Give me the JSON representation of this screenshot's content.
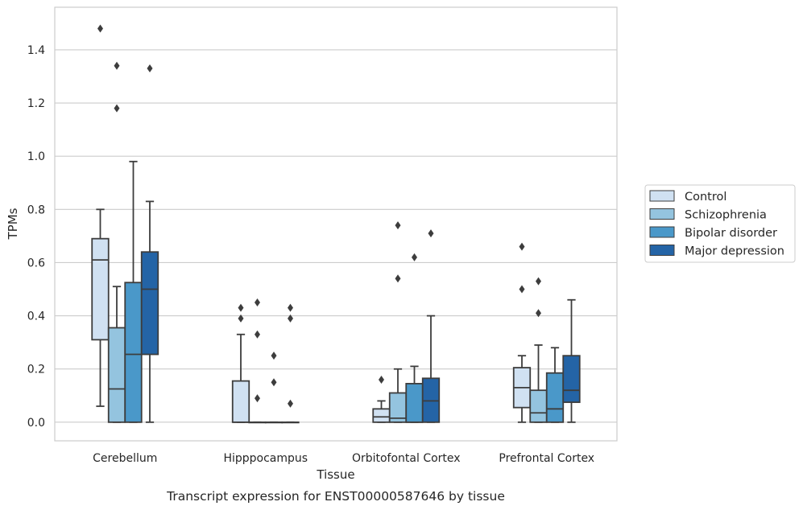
{
  "chart_data": {
    "type": "box",
    "title": "",
    "caption": "Transcript expression for ENST00000587646 by tissue",
    "xlabel": "Tissue",
    "ylabel": "TPMs",
    "ylim": [
      -0.07,
      1.56
    ],
    "yticks": [
      "0.0",
      "0.2",
      "0.4",
      "0.6",
      "0.8",
      "1.0",
      "1.2",
      "1.4"
    ],
    "yticks_values": [
      0,
      0.2,
      0.4,
      0.6,
      0.8,
      1.0,
      1.2,
      1.4
    ],
    "grid": "horizontal",
    "legend_position": "right",
    "categories": [
      "Cerebellum",
      "Hipppocampus",
      "Orbitofontal Cortex",
      "Prefrontal Cortex"
    ],
    "series": [
      {
        "name": "Control",
        "color": "#d0e1f2",
        "boxes": [
          {
            "whislo": 0.06,
            "q1": 0.31,
            "med": 0.61,
            "q3": 0.69,
            "whishi": 0.8,
            "fliers": [
              1.48
            ]
          },
          {
            "whislo": 0.0,
            "q1": 0.0,
            "med": 0.0,
            "q3": 0.155,
            "whishi": 0.33,
            "fliers": [
              0.39,
              0.43
            ]
          },
          {
            "whislo": 0.0,
            "q1": 0.0,
            "med": 0.02,
            "q3": 0.05,
            "whishi": 0.08,
            "fliers": [
              0.16
            ]
          },
          {
            "whislo": 0.0,
            "q1": 0.055,
            "med": 0.13,
            "q3": 0.205,
            "whishi": 0.25,
            "fliers": [
              0.5,
              0.66
            ]
          }
        ]
      },
      {
        "name": "Schizophrenia",
        "color": "#94c4df",
        "boxes": [
          {
            "whislo": 0.0,
            "q1": 0.0,
            "med": 0.125,
            "q3": 0.355,
            "whishi": 0.51,
            "fliers": [
              1.18,
              1.34
            ]
          },
          {
            "whislo": 0.0,
            "q1": 0.0,
            "med": 0.0,
            "q3": 0.0,
            "whishi": 0.0,
            "fliers": [
              0.09,
              0.33,
              0.45
            ]
          },
          {
            "whislo": 0.0,
            "q1": 0.0,
            "med": 0.015,
            "q3": 0.11,
            "whishi": 0.2,
            "fliers": [
              0.54,
              0.74
            ]
          },
          {
            "whislo": 0.0,
            "q1": 0.0,
            "med": 0.035,
            "q3": 0.12,
            "whishi": 0.29,
            "fliers": [
              0.41,
              0.53
            ]
          }
        ]
      },
      {
        "name": "Bipolar disorder",
        "color": "#4a98c9",
        "boxes": [
          {
            "whislo": 0.0,
            "q1": 0.0,
            "med": 0.255,
            "q3": 0.525,
            "whishi": 0.98,
            "fliers": []
          },
          {
            "whislo": 0.0,
            "q1": 0.0,
            "med": 0.0,
            "q3": 0.0,
            "whishi": 0.0,
            "fliers": [
              0.15,
              0.25
            ]
          },
          {
            "whislo": 0.0,
            "q1": 0.0,
            "med": 0.0,
            "q3": 0.145,
            "whishi": 0.21,
            "fliers": [
              0.62
            ]
          },
          {
            "whislo": 0.0,
            "q1": 0.0,
            "med": 0.05,
            "q3": 0.185,
            "whishi": 0.28,
            "fliers": []
          }
        ]
      },
      {
        "name": "Major depression",
        "color": "#2464a6",
        "boxes": [
          {
            "whislo": 0.0,
            "q1": 0.255,
            "med": 0.5,
            "q3": 0.64,
            "whishi": 0.83,
            "fliers": [
              1.33
            ]
          },
          {
            "whislo": 0.0,
            "q1": 0.0,
            "med": 0.0,
            "q3": 0.0,
            "whishi": 0.0,
            "fliers": [
              0.07,
              0.39,
              0.43
            ]
          },
          {
            "whislo": 0.0,
            "q1": 0.0,
            "med": 0.08,
            "q3": 0.165,
            "whishi": 0.4,
            "fliers": [
              0.71
            ]
          },
          {
            "whislo": 0.0,
            "q1": 0.075,
            "med": 0.12,
            "q3": 0.25,
            "whishi": 0.46,
            "fliers": []
          }
        ]
      }
    ]
  }
}
